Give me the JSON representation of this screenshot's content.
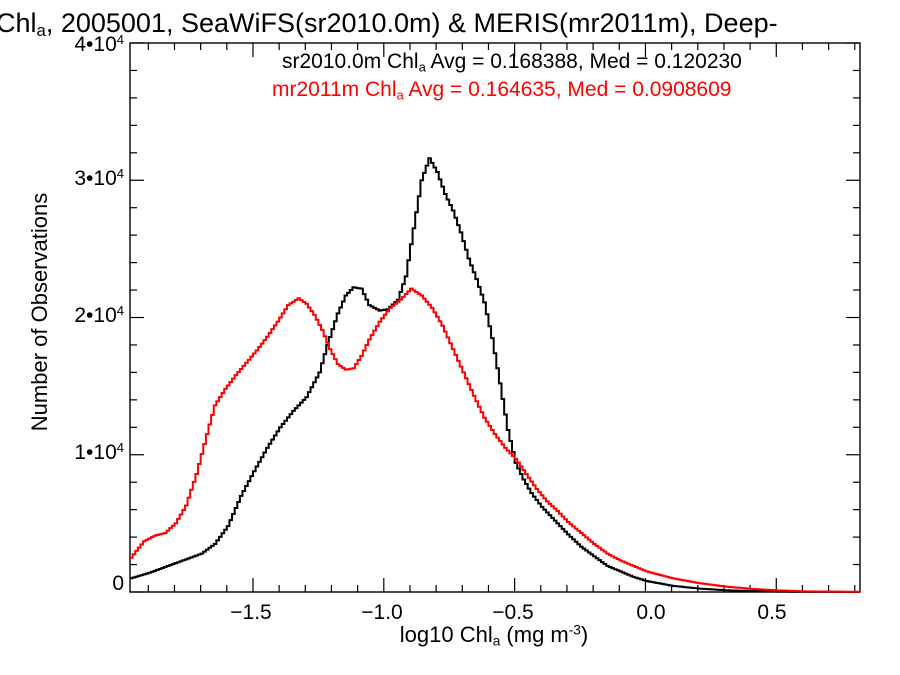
{
  "title": {
    "prefix": "Chl",
    "sub": "a",
    "rest": ", 2005001, SeaWiFS(sr2010.0m) & MERIS(mr2011m), Deep-"
  },
  "legend": {
    "line1": {
      "prefix": "sr2010.0m Chl",
      "sub": "a",
      "rest": " Avg = 0.168388, Med = 0.120230",
      "color": "#000000"
    },
    "line2": {
      "prefix": "mr2011m Chl",
      "sub": "a",
      "rest": " Avg = 0.164635, Med = 0.0908609",
      "color": "#ff0000"
    }
  },
  "axes": {
    "ylabel": "Number of Observations",
    "xlabel": {
      "prefix": "log10 Chl",
      "sub": "a",
      "rest": " (mg m",
      "sup": "-3",
      "end": ")"
    },
    "yticks": [
      {
        "label": "0",
        "value": 0
      },
      {
        "mant": "1•10",
        "exp": "4",
        "value": 10000
      },
      {
        "mant": "2•10",
        "exp": "4",
        "value": 20000
      },
      {
        "mant": "3•10",
        "exp": "4",
        "value": 30000
      },
      {
        "mant": "4•10",
        "exp": "4",
        "value": 40000
      }
    ],
    "xticks": [
      {
        "label": "−1.5",
        "value": -1.5
      },
      {
        "label": "−1.0",
        "value": -1.0
      },
      {
        "label": "−0.5",
        "value": -0.5
      },
      {
        "label": "0.0",
        "value": 0.0
      },
      {
        "label": "0.5",
        "value": 0.5
      }
    ]
  },
  "chart_data": {
    "type": "line",
    "style": "step histogram",
    "xlim": [
      -1.97,
      0.82
    ],
    "ylim": [
      0,
      40000
    ],
    "grid": false,
    "legend_placement": "top-right",
    "xlabel": "log10 Chla (mg m-3)",
    "ylabel": "Number of Observations",
    "series": [
      {
        "name": "sr2010.0m",
        "color": "#000000",
        "points": [
          [
            -1.97,
            1000
          ],
          [
            -1.9,
            1400
          ],
          [
            -1.8,
            2100
          ],
          [
            -1.7,
            2800
          ],
          [
            -1.65,
            3500
          ],
          [
            -1.6,
            4800
          ],
          [
            -1.55,
            7000
          ],
          [
            -1.5,
            8800
          ],
          [
            -1.45,
            10500
          ],
          [
            -1.4,
            12000
          ],
          [
            -1.35,
            13200
          ],
          [
            -1.3,
            14200
          ],
          [
            -1.25,
            16000
          ],
          [
            -1.22,
            18000
          ],
          [
            -1.18,
            20300
          ],
          [
            -1.15,
            21600
          ],
          [
            -1.12,
            22200
          ],
          [
            -1.09,
            22100
          ],
          [
            -1.06,
            20900
          ],
          [
            -1.02,
            20500
          ],
          [
            -0.99,
            20600
          ],
          [
            -0.95,
            21300
          ],
          [
            -0.92,
            23000
          ],
          [
            -0.89,
            26500
          ],
          [
            -0.86,
            30000
          ],
          [
            -0.83,
            31600
          ],
          [
            -0.8,
            30600
          ],
          [
            -0.77,
            29000
          ],
          [
            -0.74,
            27800
          ],
          [
            -0.71,
            26200
          ],
          [
            -0.68,
            24300
          ],
          [
            -0.65,
            22800
          ],
          [
            -0.62,
            21100
          ],
          [
            -0.59,
            18500
          ],
          [
            -0.56,
            15200
          ],
          [
            -0.53,
            11800
          ],
          [
            -0.5,
            9400
          ],
          [
            -0.47,
            8200
          ],
          [
            -0.44,
            7200
          ],
          [
            -0.4,
            6200
          ],
          [
            -0.35,
            5200
          ],
          [
            -0.3,
            4200
          ],
          [
            -0.25,
            3300
          ],
          [
            -0.2,
            2600
          ],
          [
            -0.15,
            1900
          ],
          [
            -0.1,
            1500
          ],
          [
            -0.05,
            1100
          ],
          [
            0.0,
            800
          ],
          [
            0.1,
            450
          ],
          [
            0.2,
            250
          ],
          [
            0.3,
            130
          ],
          [
            0.4,
            70
          ],
          [
            0.5,
            30
          ],
          [
            0.6,
            15
          ],
          [
            0.82,
            0
          ]
        ]
      },
      {
        "name": "mr2011m",
        "color": "#ff0000",
        "points": [
          [
            -1.97,
            2500
          ],
          [
            -1.95,
            3000
          ],
          [
            -1.92,
            3700
          ],
          [
            -1.88,
            4100
          ],
          [
            -1.84,
            4300
          ],
          [
            -1.8,
            5000
          ],
          [
            -1.76,
            6300
          ],
          [
            -1.72,
            8600
          ],
          [
            -1.68,
            11500
          ],
          [
            -1.65,
            13600
          ],
          [
            -1.61,
            14800
          ],
          [
            -1.57,
            15800
          ],
          [
            -1.53,
            16700
          ],
          [
            -1.49,
            17600
          ],
          [
            -1.45,
            18600
          ],
          [
            -1.41,
            19700
          ],
          [
            -1.37,
            20900
          ],
          [
            -1.33,
            21400
          ],
          [
            -1.3,
            21000
          ],
          [
            -1.27,
            20200
          ],
          [
            -1.24,
            19100
          ],
          [
            -1.21,
            17700
          ],
          [
            -1.18,
            16600
          ],
          [
            -1.15,
            16200
          ],
          [
            -1.12,
            16300
          ],
          [
            -1.09,
            17200
          ],
          [
            -1.06,
            18400
          ],
          [
            -1.02,
            19700
          ],
          [
            -0.98,
            20700
          ],
          [
            -0.94,
            21300
          ],
          [
            -0.9,
            22100
          ],
          [
            -0.86,
            21600
          ],
          [
            -0.82,
            20700
          ],
          [
            -0.78,
            19400
          ],
          [
            -0.74,
            17700
          ],
          [
            -0.7,
            16000
          ],
          [
            -0.66,
            14300
          ],
          [
            -0.62,
            12700
          ],
          [
            -0.58,
            11500
          ],
          [
            -0.54,
            10500
          ],
          [
            -0.5,
            9700
          ],
          [
            -0.46,
            8600
          ],
          [
            -0.42,
            7500
          ],
          [
            -0.38,
            6600
          ],
          [
            -0.34,
            5900
          ],
          [
            -0.3,
            5100
          ],
          [
            -0.25,
            4300
          ],
          [
            -0.2,
            3500
          ],
          [
            -0.15,
            2800
          ],
          [
            -0.1,
            2300
          ],
          [
            -0.05,
            1900
          ],
          [
            0.0,
            1500
          ],
          [
            0.1,
            1000
          ],
          [
            0.2,
            650
          ],
          [
            0.3,
            400
          ],
          [
            0.4,
            230
          ],
          [
            0.5,
            120
          ],
          [
            0.6,
            50
          ],
          [
            0.82,
            10
          ]
        ]
      }
    ]
  }
}
